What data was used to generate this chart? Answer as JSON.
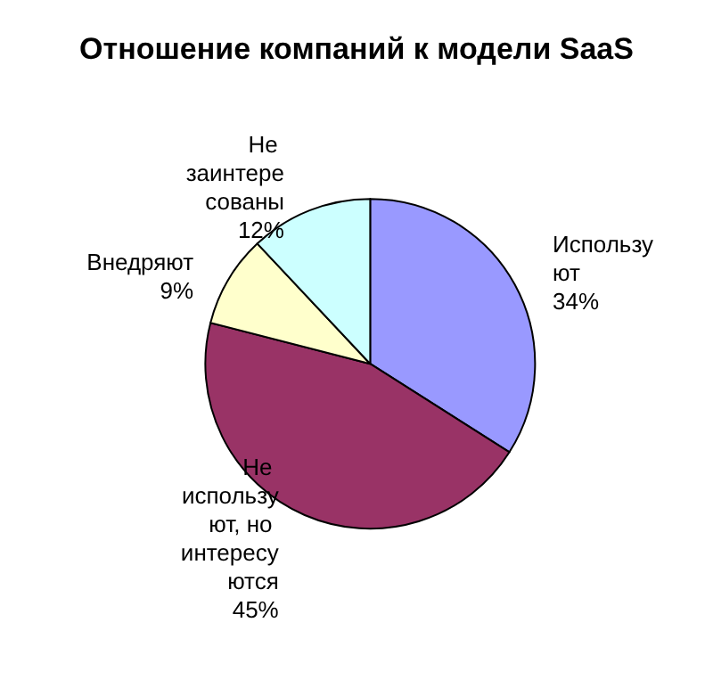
{
  "chart_data": {
    "type": "pie",
    "title": "Отношение компаний к модели SaaS",
    "categories": [
      "Используют",
      "Не используют, но интересуются",
      "Внедряют",
      "Не заинтересованы"
    ],
    "values": [
      34,
      45,
      9,
      12
    ],
    "colors": [
      "#9999ff",
      "#993366",
      "#ffffcc",
      "#ccffff"
    ],
    "value_labels": [
      "34%",
      "45%",
      "9%",
      "12%"
    ],
    "legend": false
  }
}
